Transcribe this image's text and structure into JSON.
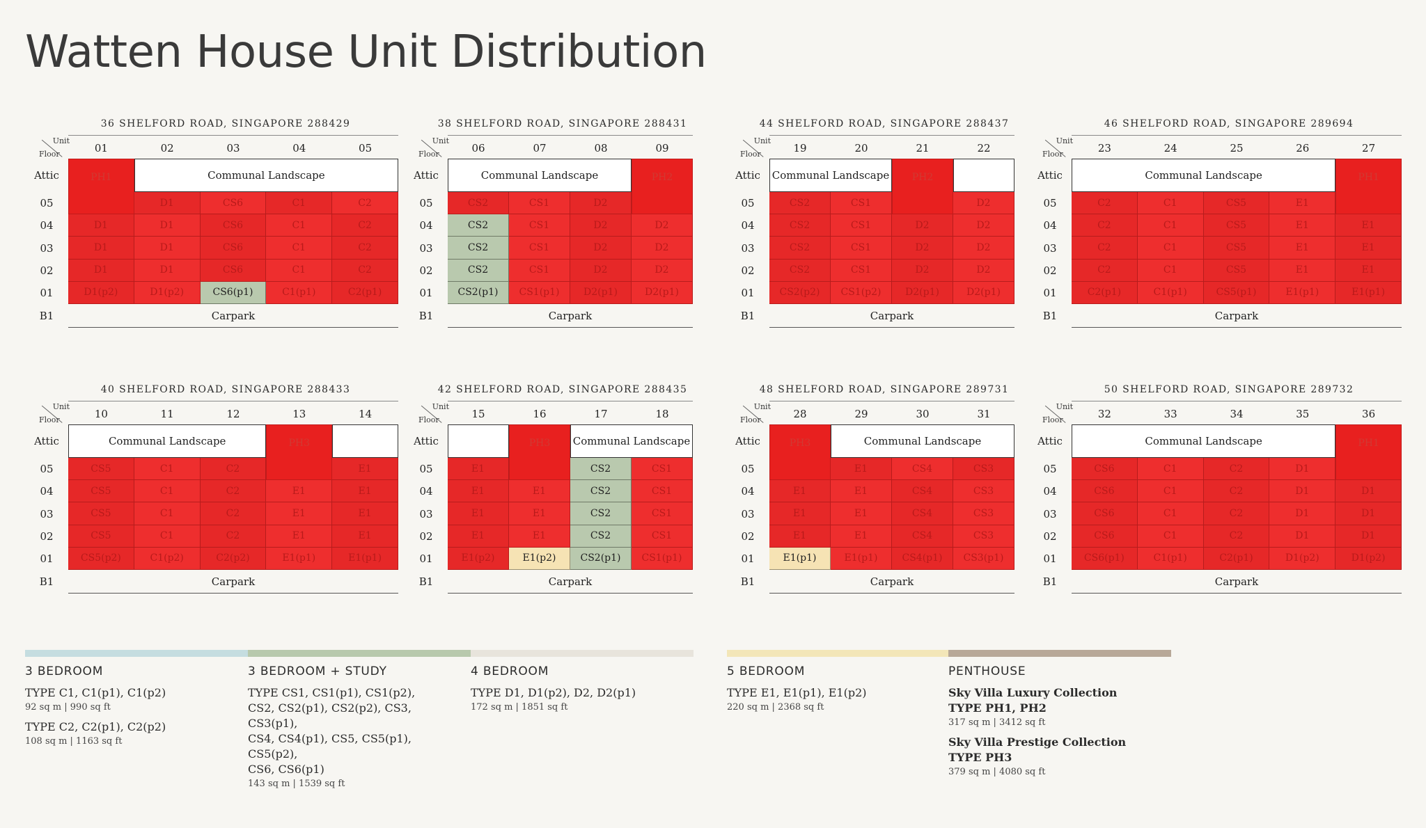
{
  "title": "Watten House Unit Distribution",
  "common": {
    "unit_label": "Unit",
    "floor_label": "Floor",
    "floors": [
      "Attic",
      "05",
      "04",
      "03",
      "02",
      "01",
      "B1"
    ],
    "landscape": "Communal Landscape",
    "carpark": "Carpark"
  },
  "blocks": [
    {
      "title": "36 SHELFORD ROAD, SINGAPORE 288429",
      "units": [
        "01",
        "02",
        "03",
        "04",
        "05"
      ],
      "attic": [
        {
          "label": "PH1",
          "span": 1,
          "kind": "ph",
          "rows": 2
        },
        {
          "label": "Communal Landscape",
          "span": 4,
          "kind": "land"
        }
      ],
      "rows": [
        [
          [
            "D1",
            "red"
          ],
          [
            "CS6",
            "red"
          ],
          [
            "C1",
            "red"
          ],
          [
            "C2",
            "red"
          ]
        ],
        [
          [
            "D1",
            "red"
          ],
          [
            "D1",
            "red"
          ],
          [
            "CS6",
            "red"
          ],
          [
            "C1",
            "red"
          ],
          [
            "C2",
            "red"
          ]
        ],
        [
          [
            "D1",
            "red"
          ],
          [
            "D1",
            "red"
          ],
          [
            "CS6",
            "red"
          ],
          [
            "C1",
            "red"
          ],
          [
            "C2",
            "red"
          ]
        ],
        [
          [
            "D1",
            "red"
          ],
          [
            "D1",
            "red"
          ],
          [
            "CS6",
            "red"
          ],
          [
            "C1",
            "red"
          ],
          [
            "C2",
            "red"
          ]
        ],
        [
          [
            "D1(p2)",
            "red"
          ],
          [
            "D1(p2)",
            "red"
          ],
          [
            "CS6(p1)",
            "sage"
          ],
          [
            "C1(p1)",
            "red"
          ],
          [
            "C2(p1)",
            "red"
          ]
        ]
      ],
      "row05_offset": 1
    },
    {
      "title": "38 SHELFORD ROAD, SINGAPORE 288431",
      "units": [
        "06",
        "07",
        "08",
        "09"
      ],
      "attic": [
        {
          "label": "Communal Landscape",
          "span": 3,
          "kind": "land"
        },
        {
          "label": "PH2",
          "span": 1,
          "kind": "ph",
          "rows": 2
        }
      ],
      "rows": [
        [
          [
            "CS2",
            "red"
          ],
          [
            "CS1",
            "red"
          ],
          [
            "D2",
            "red"
          ]
        ],
        [
          [
            "CS2",
            "sage"
          ],
          [
            "CS1",
            "red"
          ],
          [
            "D2",
            "red"
          ],
          [
            "D2",
            "red"
          ]
        ],
        [
          [
            "CS2",
            "sage"
          ],
          [
            "CS1",
            "red"
          ],
          [
            "D2",
            "red"
          ],
          [
            "D2",
            "red"
          ]
        ],
        [
          [
            "CS2",
            "sage"
          ],
          [
            "CS1",
            "red"
          ],
          [
            "D2",
            "red"
          ],
          [
            "D2",
            "red"
          ]
        ],
        [
          [
            "CS2(p1)",
            "sage"
          ],
          [
            "CS1(p1)",
            "red"
          ],
          [
            "D2(p1)",
            "red"
          ],
          [
            "D2(p1)",
            "red"
          ]
        ]
      ],
      "row05_offset": 0
    },
    {
      "title": "44 SHELFORD ROAD, SINGAPORE 288437",
      "units": [
        "19",
        "20",
        "21",
        "22"
      ],
      "attic": [
        {
          "label": "Communal Landscape",
          "span": 2,
          "kind": "land"
        },
        {
          "label": "PH2",
          "span": 1,
          "kind": "ph",
          "rows": 2
        },
        {
          "label": "",
          "span": 1,
          "kind": "land"
        }
      ],
      "rows": [
        [
          [
            "CS2",
            "red"
          ],
          [
            "CS1",
            "red"
          ],
          null,
          [
            "D2",
            "red"
          ]
        ],
        [
          [
            "CS2",
            "red"
          ],
          [
            "CS1",
            "red"
          ],
          [
            "D2",
            "red"
          ],
          [
            "D2",
            "red"
          ]
        ],
        [
          [
            "CS2",
            "red"
          ],
          [
            "CS1",
            "red"
          ],
          [
            "D2",
            "red"
          ],
          [
            "D2",
            "red"
          ]
        ],
        [
          [
            "CS2",
            "red"
          ],
          [
            "CS1",
            "red"
          ],
          [
            "D2",
            "red"
          ],
          [
            "D2",
            "red"
          ]
        ],
        [
          [
            "CS2(p2)",
            "red"
          ],
          [
            "CS1(p2)",
            "red"
          ],
          [
            "D2(p1)",
            "red"
          ],
          [
            "D2(p1)",
            "red"
          ]
        ]
      ],
      "row05_offset": 0
    },
    {
      "title": "46 SHELFORD ROAD, SINGAPORE 289694",
      "units": [
        "23",
        "24",
        "25",
        "26",
        "27"
      ],
      "attic": [
        {
          "label": "Communal Landscape",
          "span": 4,
          "kind": "land"
        },
        {
          "label": "PH1",
          "span": 1,
          "kind": "ph",
          "rows": 2
        }
      ],
      "rows": [
        [
          [
            "C2",
            "red"
          ],
          [
            "C1",
            "red"
          ],
          [
            "CS5",
            "red"
          ],
          [
            "E1",
            "red"
          ]
        ],
        [
          [
            "C2",
            "red"
          ],
          [
            "C1",
            "red"
          ],
          [
            "CS5",
            "red"
          ],
          [
            "E1",
            "red"
          ],
          [
            "E1",
            "red"
          ]
        ],
        [
          [
            "C2",
            "red"
          ],
          [
            "C1",
            "red"
          ],
          [
            "CS5",
            "red"
          ],
          [
            "E1",
            "red"
          ],
          [
            "E1",
            "red"
          ]
        ],
        [
          [
            "C2",
            "red"
          ],
          [
            "C1",
            "red"
          ],
          [
            "CS5",
            "red"
          ],
          [
            "E1",
            "red"
          ],
          [
            "E1",
            "red"
          ]
        ],
        [
          [
            "C2(p1)",
            "red"
          ],
          [
            "C1(p1)",
            "red"
          ],
          [
            "CS5(p1)",
            "red"
          ],
          [
            "E1(p1)",
            "red"
          ],
          [
            "E1(p1)",
            "red"
          ]
        ]
      ],
      "row05_offset": 0
    },
    {
      "title": "40 SHELFORD ROAD, SINGAPORE 288433",
      "units": [
        "10",
        "11",
        "12",
        "13",
        "14"
      ],
      "attic": [
        {
          "label": "Communal Landscape",
          "span": 3,
          "kind": "land"
        },
        {
          "label": "PH3",
          "span": 1,
          "kind": "ph",
          "rows": 2
        },
        {
          "label": "",
          "span": 1,
          "kind": "land"
        }
      ],
      "rows": [
        [
          [
            "CS5",
            "red"
          ],
          [
            "C1",
            "red"
          ],
          [
            "C2",
            "red"
          ],
          null,
          [
            "E1",
            "red"
          ]
        ],
        [
          [
            "CS5",
            "red"
          ],
          [
            "C1",
            "red"
          ],
          [
            "C2",
            "red"
          ],
          [
            "E1",
            "red"
          ],
          [
            "E1",
            "red"
          ]
        ],
        [
          [
            "CS5",
            "red"
          ],
          [
            "C1",
            "red"
          ],
          [
            "C2",
            "red"
          ],
          [
            "E1",
            "red"
          ],
          [
            "E1",
            "red"
          ]
        ],
        [
          [
            "CS5",
            "red"
          ],
          [
            "C1",
            "red"
          ],
          [
            "C2",
            "red"
          ],
          [
            "E1",
            "red"
          ],
          [
            "E1",
            "red"
          ]
        ],
        [
          [
            "CS5(p2)",
            "red"
          ],
          [
            "C1(p2)",
            "red"
          ],
          [
            "C2(p2)",
            "red"
          ],
          [
            "E1(p1)",
            "red"
          ],
          [
            "E1(p1)",
            "red"
          ]
        ]
      ],
      "row05_offset": 0
    },
    {
      "title": "42 SHELFORD ROAD, SINGAPORE 288435",
      "units": [
        "15",
        "16",
        "17",
        "18"
      ],
      "attic": [
        {
          "label": "",
          "span": 1,
          "kind": "land"
        },
        {
          "label": "PH3",
          "span": 1,
          "kind": "ph",
          "rows": 2
        },
        {
          "label": "Communal Landscape",
          "span": 2,
          "kind": "land"
        }
      ],
      "rows": [
        [
          [
            "E1",
            "red"
          ],
          null,
          [
            "CS2",
            "sage"
          ],
          [
            "CS1",
            "red"
          ]
        ],
        [
          [
            "E1",
            "red"
          ],
          [
            "E1",
            "red"
          ],
          [
            "CS2",
            "sage"
          ],
          [
            "CS1",
            "red"
          ]
        ],
        [
          [
            "E1",
            "red"
          ],
          [
            "E1",
            "red"
          ],
          [
            "CS2",
            "sage"
          ],
          [
            "CS1",
            "red"
          ]
        ],
        [
          [
            "E1",
            "red"
          ],
          [
            "E1",
            "red"
          ],
          [
            "CS2",
            "sage"
          ],
          [
            "CS1",
            "red"
          ]
        ],
        [
          [
            "E1(p2)",
            "red"
          ],
          [
            "E1(p2)",
            "cream"
          ],
          [
            "CS2(p1)",
            "sage"
          ],
          [
            "CS1(p1)",
            "red"
          ]
        ]
      ],
      "row05_offset": 0
    },
    {
      "title": "48 SHELFORD ROAD, SINGAPORE 289731",
      "units": [
        "28",
        "29",
        "30",
        "31"
      ],
      "attic": [
        {
          "label": "PH3",
          "span": 1,
          "kind": "ph",
          "rows": 2
        },
        {
          "label": "Communal Landscape",
          "span": 3,
          "kind": "land"
        }
      ],
      "rows": [
        [
          [
            "E1",
            "red"
          ],
          [
            "CS4",
            "red"
          ],
          [
            "CS3",
            "red"
          ]
        ],
        [
          [
            "E1",
            "red"
          ],
          [
            "E1",
            "red"
          ],
          [
            "CS4",
            "red"
          ],
          [
            "CS3",
            "red"
          ]
        ],
        [
          [
            "E1",
            "red"
          ],
          [
            "E1",
            "red"
          ],
          [
            "CS4",
            "red"
          ],
          [
            "CS3",
            "red"
          ]
        ],
        [
          [
            "E1",
            "red"
          ],
          [
            "E1",
            "red"
          ],
          [
            "CS4",
            "red"
          ],
          [
            "CS3",
            "red"
          ]
        ],
        [
          [
            "E1(p1)",
            "cream"
          ],
          [
            "E1(p1)",
            "red"
          ],
          [
            "CS4(p1)",
            "red"
          ],
          [
            "CS3(p1)",
            "red"
          ]
        ]
      ],
      "row05_offset": 1
    },
    {
      "title": "50 SHELFORD ROAD, SINGAPORE 289732",
      "units": [
        "32",
        "33",
        "34",
        "35",
        "36"
      ],
      "attic": [
        {
          "label": "Communal Landscape",
          "span": 4,
          "kind": "land"
        },
        {
          "label": "PH1",
          "span": 1,
          "kind": "ph",
          "rows": 2
        }
      ],
      "rows": [
        [
          [
            "CS6",
            "red"
          ],
          [
            "C1",
            "red"
          ],
          [
            "C2",
            "red"
          ],
          [
            "D1",
            "red"
          ]
        ],
        [
          [
            "CS6",
            "red"
          ],
          [
            "C1",
            "red"
          ],
          [
            "C2",
            "red"
          ],
          [
            "D1",
            "red"
          ],
          [
            "D1",
            "red"
          ]
        ],
        [
          [
            "CS6",
            "red"
          ],
          [
            "C1",
            "red"
          ],
          [
            "C2",
            "red"
          ],
          [
            "D1",
            "red"
          ],
          [
            "D1",
            "red"
          ]
        ],
        [
          [
            "CS6",
            "red"
          ],
          [
            "C1",
            "red"
          ],
          [
            "C2",
            "red"
          ],
          [
            "D1",
            "red"
          ],
          [
            "D1",
            "red"
          ]
        ],
        [
          [
            "CS6(p1)",
            "red"
          ],
          [
            "C1(p1)",
            "red"
          ],
          [
            "C2(p1)",
            "red"
          ],
          [
            "D1(p2)",
            "red"
          ],
          [
            "D1(p2)",
            "red"
          ]
        ]
      ],
      "row05_offset": 0
    }
  ],
  "legend": {
    "colors": {
      "bed3": "#c5dde0",
      "bed3s": "#b8c9ad",
      "bed4": "#e8e4dc",
      "bed5": "#f3e6b8",
      "ph": "#b8a898"
    },
    "bed3": {
      "heading": "3 BEDROOM",
      "type1": "TYPE C1, C1(p1), C1(p2)",
      "size1": "92 sq m | 990 sq ft",
      "type2": "TYPE C2, C2(p1), C2(p2)",
      "size2": "108 sq m | 1163 sq ft"
    },
    "bed3s": {
      "heading": "3 BEDROOM + STUDY",
      "line1": "TYPE CS1, CS1(p1), CS1(p2),",
      "line2": "CS2, CS2(p1), CS2(p2), CS3, CS3(p1),",
      "line3": "CS4, CS4(p1), CS5, CS5(p1), CS5(p2),",
      "line4": "CS6, CS6(p1)",
      "size": "143 sq m | 1539 sq ft"
    },
    "bed4": {
      "heading": "4 BEDROOM",
      "type": "TYPE D1, D1(p2), D2, D2(p1)",
      "size": "172 sq m | 1851 sq ft"
    },
    "bed5": {
      "heading": "5 BEDROOM",
      "type": "TYPE E1, E1(p1), E1(p2)",
      "size": "220 sq m | 2368 sq ft"
    },
    "ph": {
      "heading": "PENTHOUSE",
      "coll1": "Sky Villa Luxury Collection",
      "type1": "TYPE PH1, PH2",
      "size1": "317 sq m | 3412 sq ft",
      "coll2": "Sky Villa Prestige Collection",
      "type2": "TYPE PH3",
      "size2": "379 sq m | 4080 sq ft"
    }
  }
}
